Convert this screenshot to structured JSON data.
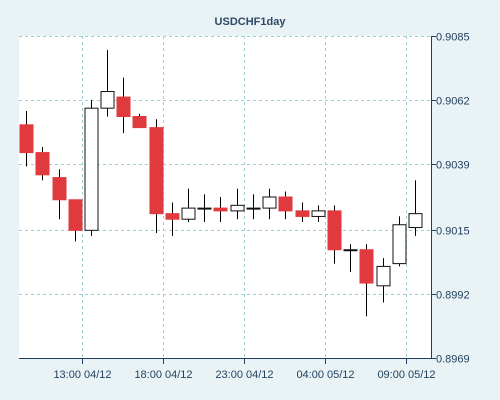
{
  "chart_data": {
    "type": "candlestick",
    "title": "USDCHF1day",
    "x_tick_labels": [
      "13:00 04/12",
      "18:00 04/12",
      "23:00 04/12",
      "04:00 05/12",
      "09:00 05/12"
    ],
    "y_tick_labels": [
      "0.9085",
      "0.9062",
      "0.9039",
      "0.9015",
      "0.8992",
      "0.8969"
    ],
    "ylim": [
      0.8969,
      0.9085
    ],
    "grid": true,
    "colors": {
      "bull_fill": "#ffffff",
      "bear_fill": "#e03a3e",
      "outline": "#111111",
      "wick": "#000000",
      "grid": "#9ed0d3",
      "plot_bg": "#ffffff",
      "frame_bg": "#e9f2f4",
      "axis": "#1f3f5f"
    },
    "candles": [
      {
        "open": 0.9053,
        "high": 0.9058,
        "low": 0.9038,
        "close": 0.9043
      },
      {
        "open": 0.9043,
        "high": 0.9045,
        "low": 0.9033,
        "close": 0.9035
      },
      {
        "open": 0.9034,
        "high": 0.9037,
        "low": 0.9019,
        "close": 0.9026
      },
      {
        "open": 0.9026,
        "high": 0.9026,
        "low": 0.9011,
        "close": 0.9015
      },
      {
        "open": 0.9015,
        "high": 0.9062,
        "low": 0.9013,
        "close": 0.9059
      },
      {
        "open": 0.9059,
        "high": 0.908,
        "low": 0.9056,
        "close": 0.9065
      },
      {
        "open": 0.9063,
        "high": 0.907,
        "low": 0.905,
        "close": 0.9056
      },
      {
        "open": 0.9056,
        "high": 0.9057,
        "low": 0.9052,
        "close": 0.9052
      },
      {
        "open": 0.9052,
        "high": 0.9055,
        "low": 0.9014,
        "close": 0.9021
      },
      {
        "open": 0.9021,
        "high": 0.9025,
        "low": 0.9013,
        "close": 0.9019
      },
      {
        "open": 0.9019,
        "high": 0.903,
        "low": 0.9018,
        "close": 0.9023
      },
      {
        "open": 0.9023,
        "high": 0.9028,
        "low": 0.9018,
        "close": 0.9023
      },
      {
        "open": 0.9023,
        "high": 0.9027,
        "low": 0.9018,
        "close": 0.9022
      },
      {
        "open": 0.9022,
        "high": 0.903,
        "low": 0.9019,
        "close": 0.9024
      },
      {
        "open": 0.9023,
        "high": 0.9028,
        "low": 0.9019,
        "close": 0.9023
      },
      {
        "open": 0.9023,
        "high": 0.903,
        "low": 0.9019,
        "close": 0.9027
      },
      {
        "open": 0.9027,
        "high": 0.9029,
        "low": 0.9019,
        "close": 0.9022
      },
      {
        "open": 0.9022,
        "high": 0.9025,
        "low": 0.9018,
        "close": 0.902
      },
      {
        "open": 0.902,
        "high": 0.9024,
        "low": 0.9018,
        "close": 0.9022
      },
      {
        "open": 0.9022,
        "high": 0.9024,
        "low": 0.9003,
        "close": 0.9008
      },
      {
        "open": 0.9008,
        "high": 0.901,
        "low": 0.9,
        "close": 0.9008
      },
      {
        "open": 0.9008,
        "high": 0.901,
        "low": 0.8984,
        "close": 0.8996
      },
      {
        "open": 0.8995,
        "high": 0.9005,
        "low": 0.8989,
        "close": 0.9002
      },
      {
        "open": 0.9003,
        "high": 0.902,
        "low": 0.9002,
        "close": 0.9017
      },
      {
        "open": 0.9016,
        "high": 0.9033,
        "low": 0.9013,
        "close": 0.9021
      }
    ]
  }
}
